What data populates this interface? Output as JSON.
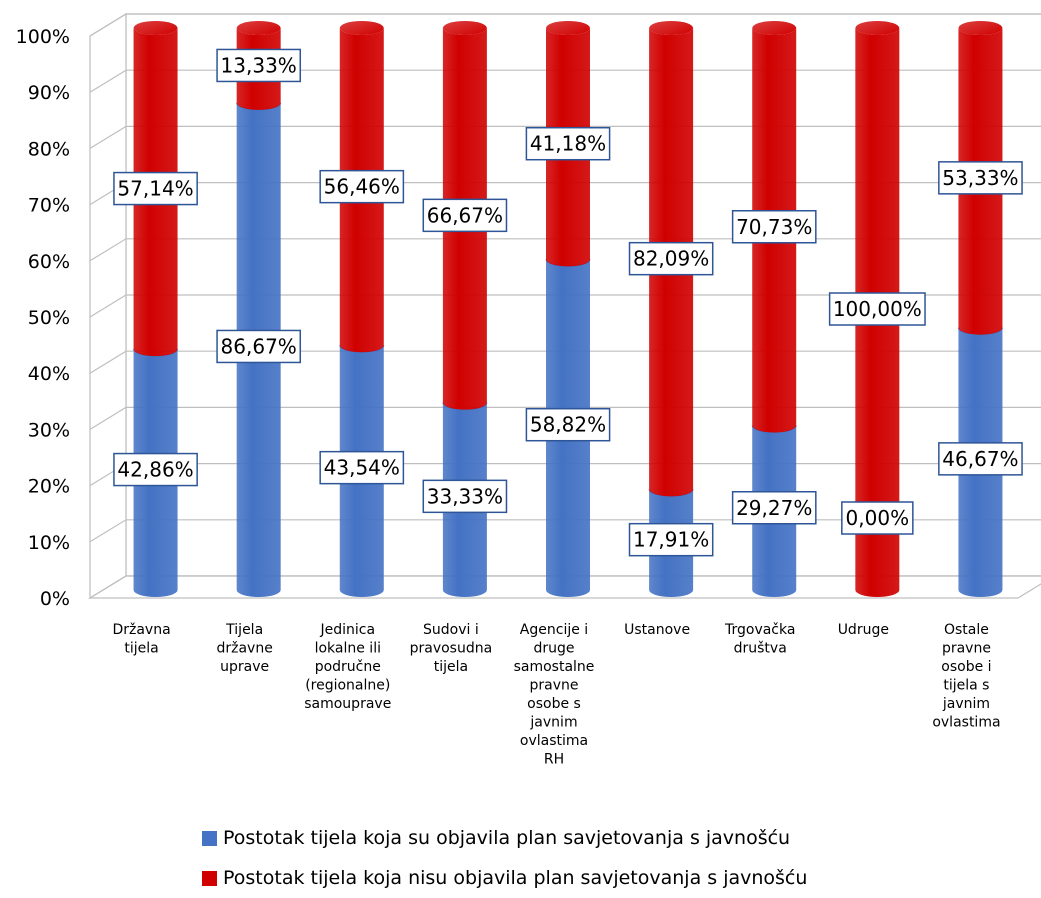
{
  "chart_data": {
    "type": "bar",
    "stacked": true,
    "percent_stacked": true,
    "style": "3d-cylinder",
    "title": "",
    "xlabel": "",
    "ylabel": "",
    "ylim": [
      0,
      100
    ],
    "y_ticks": [
      "0%",
      "10%",
      "20%",
      "30%",
      "40%",
      "50%",
      "60%",
      "70%",
      "80%",
      "90%",
      "100%"
    ],
    "grid": true,
    "legend_position": "bottom",
    "categories": [
      [
        "Državna",
        "tijela"
      ],
      [
        "Tijela",
        "državne",
        "uprave"
      ],
      [
        "Jedinica",
        "lokalne ili",
        "područne",
        "(regionalne)",
        "samouprave"
      ],
      [
        "Sudovi i",
        "pravosudna",
        "tijela"
      ],
      [
        "Agencije i",
        "druge",
        "samostalne",
        "pravne",
        "osobe s",
        "javnim",
        "ovlastima",
        "RH"
      ],
      [
        "Ustanove"
      ],
      [
        "Trgovačka",
        "društva"
      ],
      [
        "Udruge"
      ],
      [
        "Ostale",
        "pravne",
        "osobe i",
        "tijela s",
        "javnim",
        "ovlastima"
      ]
    ],
    "series": [
      {
        "name": "Postotak tijela koja su objavila plan savjetovanja s javnošću",
        "color": "#4472C4",
        "values": [
          42.86,
          86.67,
          43.54,
          33.33,
          58.82,
          17.91,
          29.27,
          0.0,
          46.67
        ],
        "labels": [
          "42,86%",
          "86,67%",
          "43,54%",
          "33,33%",
          "58,82%",
          "17,91%",
          "29,27%",
          "0,00%",
          "46,67%"
        ]
      },
      {
        "name": "Postotak tijela koja nisu objavila plan savjetovanja s javnošću",
        "color": "#D00000",
        "values": [
          57.14,
          13.33,
          56.46,
          66.67,
          41.18,
          82.09,
          70.73,
          100.0,
          53.33
        ],
        "labels": [
          "57,14%",
          "13,33%",
          "56,46%",
          "66,67%",
          "41,18%",
          "82,09%",
          "70,73%",
          "100,00%",
          "53,33%"
        ]
      }
    ]
  }
}
